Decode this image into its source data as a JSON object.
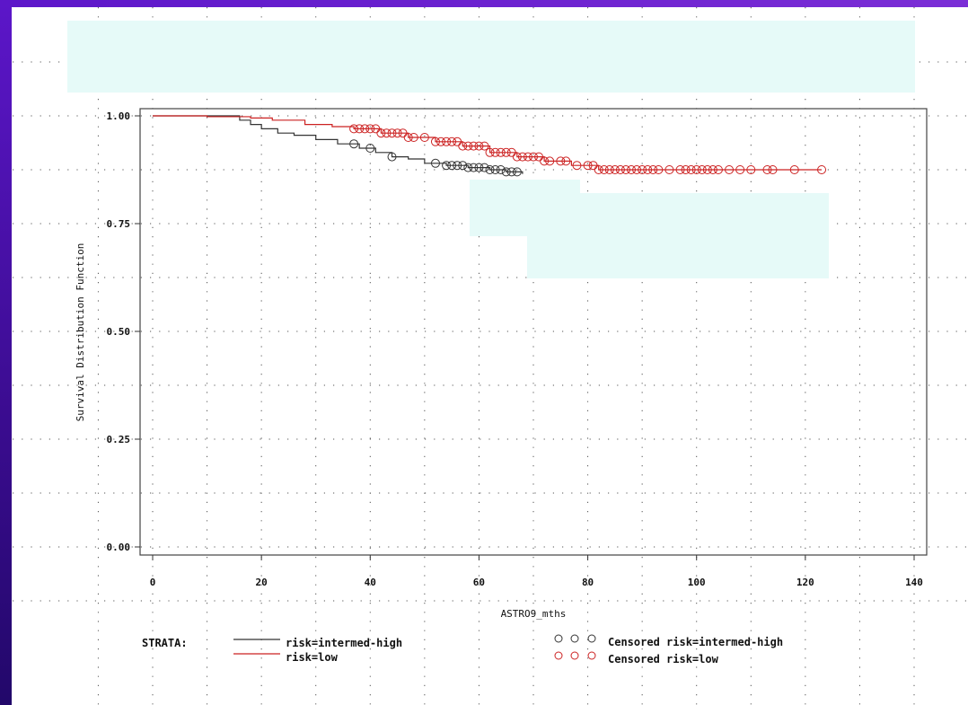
{
  "chart_data": {
    "type": "line",
    "chart_style": "Kaplan-Meier survival curve (step)",
    "xlabel": "ASTRO9_mths",
    "ylabel": "Survival Distribution Function",
    "xlim": [
      0,
      140
    ],
    "ylim": [
      0,
      1
    ],
    "x_ticks": [
      "0",
      "20",
      "40",
      "60",
      "80",
      "100",
      "120",
      "140"
    ],
    "y_ticks": [
      "0.00",
      "0.25",
      "0.50",
      "0.75",
      "1.00"
    ],
    "grid": "dotted",
    "legend": {
      "title": "STRATA:",
      "placement": "bottom",
      "lines": [
        "risk=intermed-high",
        "risk=low"
      ],
      "markers": [
        "Censored risk=intermed-high",
        "Censored risk=low"
      ]
    },
    "series": [
      {
        "name": "risk=intermed-high",
        "color": "#333333",
        "step_points": [
          [
            0,
            1.0
          ],
          [
            16,
            0.99
          ],
          [
            18,
            0.98
          ],
          [
            20,
            0.97
          ],
          [
            23,
            0.96
          ],
          [
            26,
            0.955
          ],
          [
            30,
            0.945
          ],
          [
            34,
            0.935
          ],
          [
            38,
            0.925
          ],
          [
            41,
            0.915
          ],
          [
            44,
            0.905
          ],
          [
            47,
            0.9
          ],
          [
            50,
            0.89
          ],
          [
            54,
            0.885
          ],
          [
            58,
            0.88
          ],
          [
            62,
            0.875
          ],
          [
            65,
            0.87
          ],
          [
            68,
            0.865
          ]
        ],
        "censored_x": [
          37,
          40,
          44,
          52,
          54,
          55,
          56,
          57,
          58,
          59,
          60,
          61,
          62,
          63,
          64,
          65,
          66,
          67
        ]
      },
      {
        "name": "risk=low",
        "color": "#cc2222",
        "step_points": [
          [
            0,
            1.0
          ],
          [
            10,
            0.998
          ],
          [
            18,
            0.995
          ],
          [
            22,
            0.99
          ],
          [
            28,
            0.98
          ],
          [
            33,
            0.975
          ],
          [
            37,
            0.97
          ],
          [
            42,
            0.96
          ],
          [
            47,
            0.95
          ],
          [
            52,
            0.94
          ],
          [
            57,
            0.93
          ],
          [
            62,
            0.915
          ],
          [
            67,
            0.905
          ],
          [
            72,
            0.895
          ],
          [
            77,
            0.885
          ],
          [
            82,
            0.875
          ],
          [
            123,
            0.875
          ]
        ],
        "censored_x": [
          37,
          38,
          39,
          40,
          41,
          42,
          43,
          44,
          45,
          46,
          47,
          48,
          50,
          52,
          53,
          54,
          55,
          56,
          57,
          58,
          59,
          60,
          61,
          62,
          63,
          64,
          65,
          66,
          67,
          68,
          69,
          70,
          71,
          72,
          73,
          75,
          76,
          78,
          80,
          81,
          82,
          83,
          84,
          85,
          86,
          87,
          88,
          89,
          90,
          91,
          92,
          93,
          95,
          97,
          98,
          99,
          100,
          101,
          102,
          103,
          104,
          106,
          108,
          110,
          113,
          114,
          118,
          123
        ]
      }
    ]
  }
}
